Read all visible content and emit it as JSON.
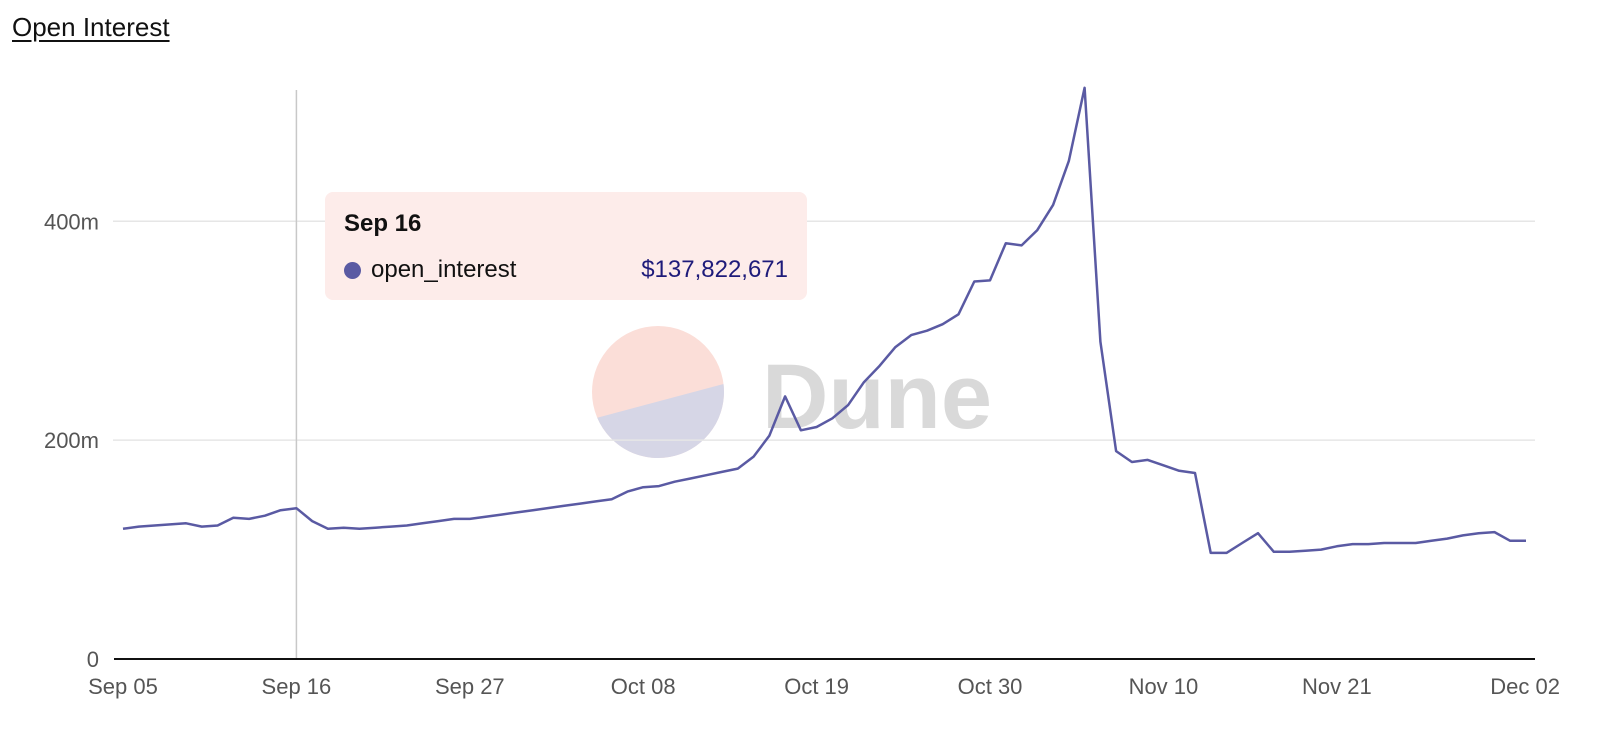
{
  "header": {
    "title": "Open Interest"
  },
  "watermark": {
    "text": "Dune"
  },
  "tooltip": {
    "date": "Sep 16",
    "series_name": "open_interest",
    "value_text": "$137,822,671",
    "index": 11
  },
  "colors": {
    "line": "#5a5aa3",
    "grid": "#e6e6e6",
    "crosshair": "#c8c8c8",
    "axis": "#111111",
    "logo_top": "#fbded8",
    "logo_bottom": "#d6d6e6",
    "watermark_text": "#d9d9d9"
  },
  "chart_data": {
    "type": "line",
    "title": "Open Interest",
    "xlabel": "",
    "ylabel": "",
    "ylim": [
      0,
      520
    ],
    "x_tick_step": 11,
    "y_ticks": [
      {
        "value": 0,
        "label": "0"
      },
      {
        "value": 200,
        "label": "200m"
      },
      {
        "value": 400,
        "label": "400m"
      }
    ],
    "x_tick_labels": [
      "Sep 05",
      "Sep 16",
      "Sep 27",
      "Oct 08",
      "Oct 19",
      "Oct 30",
      "Nov 10",
      "Nov 21",
      "Dec 02"
    ],
    "series": [
      {
        "name": "open_interest",
        "unit": "millions USD",
        "values": [
          119,
          121,
          122,
          123,
          124,
          121,
          122,
          129,
          128,
          131,
          136,
          137.8,
          126,
          119,
          120,
          119,
          120,
          121,
          122,
          124,
          126,
          128,
          128,
          130,
          132,
          134,
          136,
          138,
          140,
          142,
          144,
          146,
          153,
          157,
          158,
          162,
          165,
          168,
          171,
          174,
          185,
          204,
          240,
          209,
          212,
          220,
          232,
          253,
          268,
          285,
          296,
          300,
          306,
          315,
          345,
          346,
          380,
          378,
          392,
          415,
          455,
          522,
          290,
          190,
          180,
          182,
          177,
          172,
          170,
          97,
          97,
          106,
          115,
          98,
          98,
          99,
          100,
          103,
          105,
          105,
          106,
          106,
          106,
          108,
          110,
          113,
          115,
          116,
          108,
          108
        ]
      }
    ]
  }
}
